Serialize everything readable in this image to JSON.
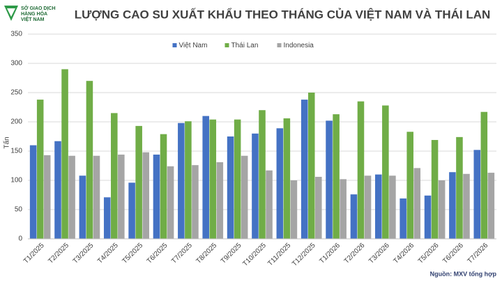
{
  "logo": [
    "SỞ GIAO DỊCH",
    "HÀNG HÓA",
    "VIỆT NAM"
  ],
  "source": "Nguồn: MXV tổng hợp",
  "chart_data": {
    "type": "bar",
    "title": "LƯỢNG CAO SU XUẤT KHẨU THEO THÁNG CỦA VIỆT NAM VÀ THÁI LAN",
    "y_label": "Tấn",
    "categories": [
      "T1/2025",
      "T2/2025",
      "T3/2025",
      "T4/2025",
      "T5/2025",
      "T6/2025",
      "T7/2025",
      "T8/2025",
      "T9/2025",
      "T10/2025",
      "T11/2025",
      "T12/2025",
      "T1/2026",
      "T2/2026",
      "T3/2026",
      "T4/2026",
      "T5/2026",
      "T6/2026",
      "T7/2026"
    ],
    "series": [
      {
        "name": "Việt Nam",
        "color": "#4472c4",
        "values": [
          160,
          167,
          108,
          71,
          96,
          144,
          198,
          210,
          175,
          180,
          189,
          238,
          202,
          76,
          110,
          69,
          74,
          114,
          152
        ]
      },
      {
        "name": "Thái Lan",
        "color": "#70ad47",
        "values": [
          238,
          290,
          270,
          215,
          193,
          179,
          201,
          204,
          204,
          220,
          206,
          250,
          213,
          235,
          228,
          183,
          169,
          174,
          217
        ]
      },
      {
        "name": "Indonesia",
        "color": "#a5a5a5",
        "values": [
          143,
          142,
          142,
          144,
          148,
          124,
          126,
          131,
          142,
          117,
          100,
          106,
          102,
          108,
          108,
          121,
          100,
          111,
          113
        ]
      }
    ],
    "ylim": [
      0,
      350
    ],
    "yticks": [
      0,
      50,
      100,
      150,
      200,
      250,
      300,
      350
    ],
    "grid": true,
    "legend": "top"
  }
}
